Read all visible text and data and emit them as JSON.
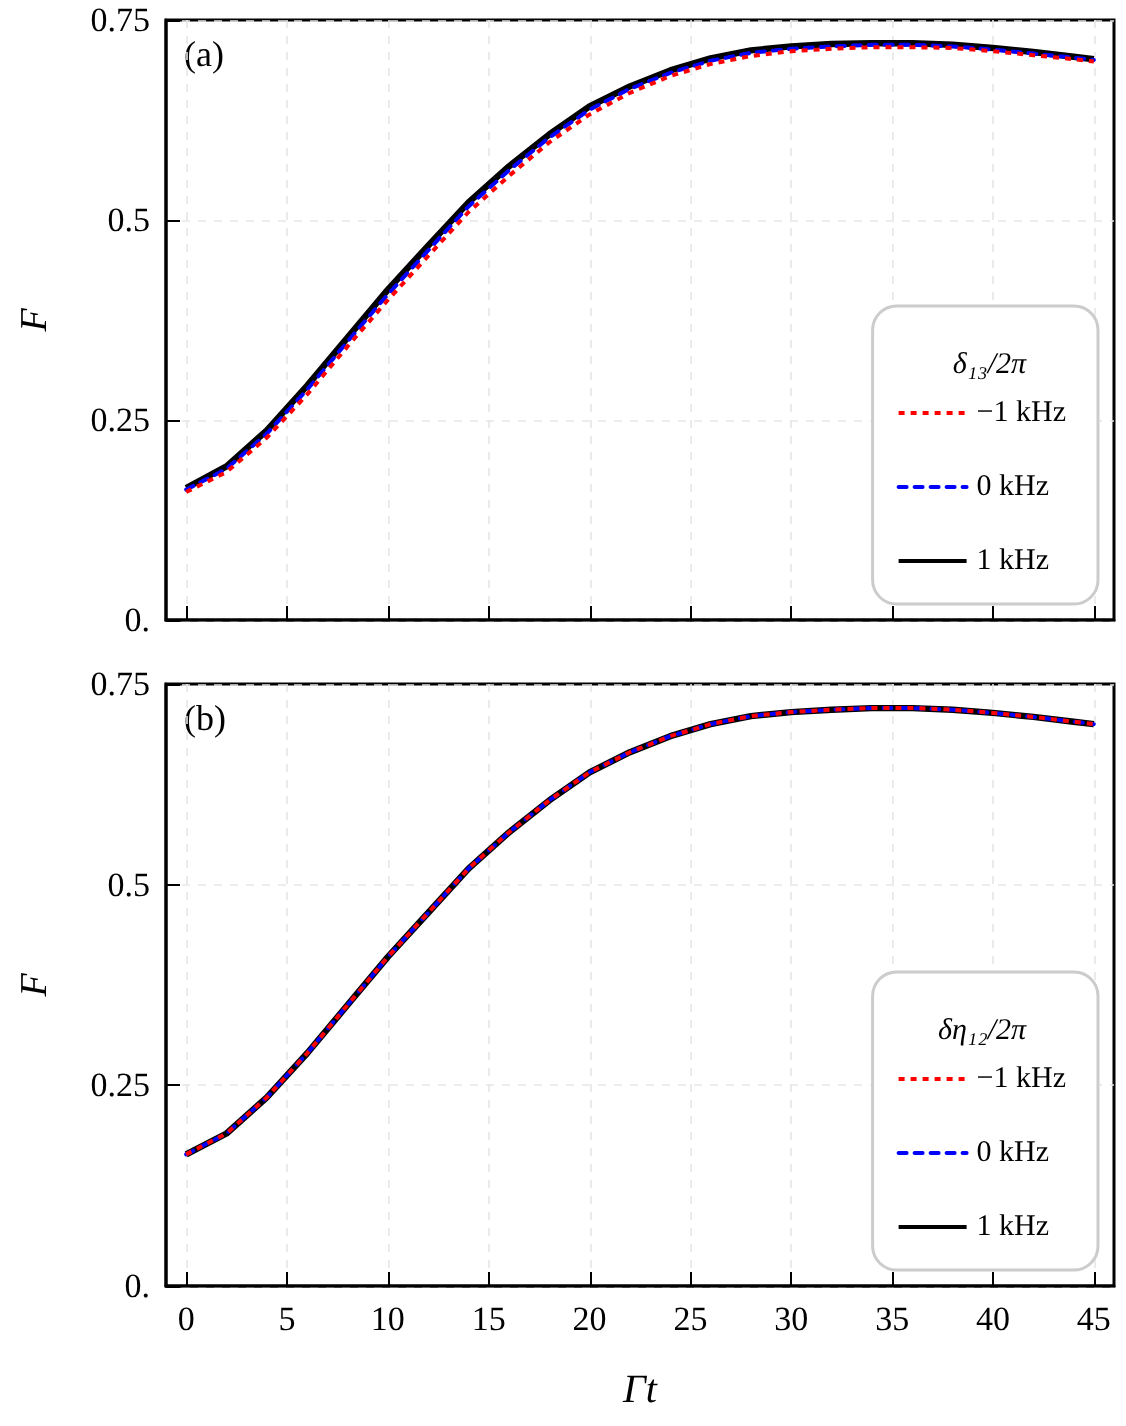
{
  "chart_data": [
    {
      "type": "line",
      "ylabel": "F",
      "annotations": [
        "(a)"
      ],
      "legend_title": "δ₁₃/2π",
      "legend": "bottom right",
      "grid": true,
      "tick_labels": "y",
      "xlim": [
        -1,
        46
      ],
      "ylim": [
        0,
        0.75
      ],
      "xticks": [
        0,
        5,
        10,
        15,
        20,
        25,
        30,
        35,
        40,
        45
      ],
      "yticks": [
        {
          "value": 0,
          "label": "0."
        },
        0.25,
        0.5,
        0.75
      ],
      "series": [
        {
          "name": "−1 kHz",
          "color": "#ff0000",
          "line_style": "dotted",
          "x": [
            0,
            2,
            4,
            6,
            8,
            10,
            12,
            14,
            16,
            18,
            20,
            22,
            24,
            26,
            28,
            30,
            32,
            34,
            36,
            38,
            40,
            42,
            44,
            45
          ],
          "values": [
            0.16,
            0.185,
            0.228,
            0.282,
            0.342,
            0.4,
            0.455,
            0.51,
            0.555,
            0.597,
            0.632,
            0.659,
            0.68,
            0.695,
            0.705,
            0.711,
            0.714,
            0.716,
            0.716,
            0.715,
            0.711,
            0.706,
            0.701,
            0.698
          ]
        },
        {
          "name": "0 kHz",
          "color": "#0000ff",
          "line_style": "dashed",
          "x": [
            0,
            2,
            4,
            6,
            8,
            10,
            12,
            14,
            16,
            18,
            20,
            22,
            24,
            26,
            28,
            30,
            32,
            34,
            36,
            38,
            40,
            42,
            44,
            45
          ],
          "values": [
            0.163,
            0.189,
            0.233,
            0.288,
            0.348,
            0.407,
            0.462,
            0.517,
            0.562,
            0.603,
            0.638,
            0.664,
            0.684,
            0.699,
            0.709,
            0.714,
            0.717,
            0.719,
            0.719,
            0.717,
            0.713,
            0.708,
            0.703,
            0.7
          ]
        },
        {
          "name": "1 kHz",
          "color": "#000000",
          "line_style": "solid",
          "x": [
            0,
            2,
            4,
            6,
            8,
            10,
            12,
            14,
            16,
            18,
            20,
            22,
            24,
            26,
            28,
            30,
            32,
            34,
            36,
            38,
            40,
            42,
            44,
            45
          ],
          "values": [
            0.165,
            0.192,
            0.237,
            0.293,
            0.353,
            0.413,
            0.468,
            0.522,
            0.567,
            0.607,
            0.642,
            0.667,
            0.687,
            0.702,
            0.712,
            0.717,
            0.72,
            0.721,
            0.721,
            0.719,
            0.715,
            0.71,
            0.704,
            0.701
          ]
        }
      ]
    },
    {
      "type": "line",
      "xlabel": "Γt",
      "ylabel": "F",
      "annotations": [
        "(b)"
      ],
      "legend_title": "δη₁₂/2π",
      "legend": "bottom right",
      "grid": true,
      "xlim": [
        -1,
        46
      ],
      "ylim": [
        0,
        0.75
      ],
      "xticks": [
        0,
        5,
        10,
        15,
        20,
        25,
        30,
        35,
        40,
        45
      ],
      "yticks": [
        {
          "value": 0,
          "label": "0."
        },
        0.25,
        0.5,
        0.75
      ],
      "series": [
        {
          "name": "−1 kHz",
          "color": "#ff0000",
          "line_style": "dotted",
          "x": [
            0,
            2,
            4,
            6,
            8,
            10,
            12,
            14,
            16,
            18,
            20,
            22,
            24,
            26,
            28,
            30,
            32,
            34,
            36,
            38,
            40,
            42,
            44,
            45
          ],
          "values": [
            0.164,
            0.19,
            0.235,
            0.29,
            0.35,
            0.41,
            0.465,
            0.52,
            0.565,
            0.605,
            0.64,
            0.665,
            0.685,
            0.7,
            0.71,
            0.715,
            0.718,
            0.72,
            0.72,
            0.718,
            0.714,
            0.709,
            0.703,
            0.7
          ]
        },
        {
          "name": "0 kHz",
          "color": "#0000ff",
          "line_style": "dashed",
          "x": [
            0,
            2,
            4,
            6,
            8,
            10,
            12,
            14,
            16,
            18,
            20,
            22,
            24,
            26,
            28,
            30,
            32,
            34,
            36,
            38,
            40,
            42,
            44,
            45
          ],
          "values": [
            0.164,
            0.19,
            0.235,
            0.29,
            0.35,
            0.41,
            0.465,
            0.52,
            0.565,
            0.605,
            0.64,
            0.665,
            0.685,
            0.7,
            0.71,
            0.715,
            0.718,
            0.72,
            0.72,
            0.718,
            0.714,
            0.709,
            0.703,
            0.7
          ]
        },
        {
          "name": "1 kHz",
          "color": "#000000",
          "line_style": "solid",
          "x": [
            0,
            2,
            4,
            6,
            8,
            10,
            12,
            14,
            16,
            18,
            20,
            22,
            24,
            26,
            28,
            30,
            32,
            34,
            36,
            38,
            40,
            42,
            44,
            45
          ],
          "values": [
            0.164,
            0.19,
            0.235,
            0.29,
            0.35,
            0.41,
            0.465,
            0.52,
            0.565,
            0.605,
            0.64,
            0.665,
            0.685,
            0.7,
            0.71,
            0.715,
            0.718,
            0.72,
            0.72,
            0.718,
            0.714,
            0.709,
            0.703,
            0.7
          ]
        }
      ]
    }
  ]
}
